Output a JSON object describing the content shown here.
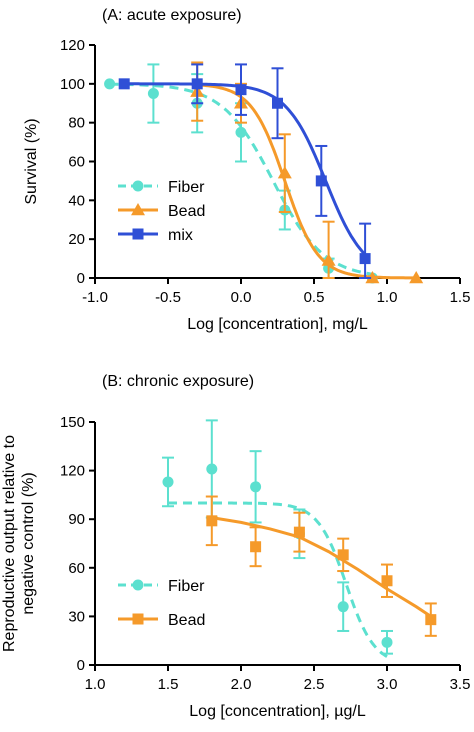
{
  "chart_data": [
    {
      "type": "scatter",
      "title": "(A: acute exposure)",
      "xlabel": "Log [concentration], mg/L",
      "ylabel": "Survival  (%)",
      "xlim": [
        -1.0,
        1.5
      ],
      "ylim": [
        0,
        120
      ],
      "xticks": [
        "-1.0",
        "-0.5",
        "0.0",
        "0.5",
        "1.0",
        "1.5"
      ],
      "yticks": [
        "0",
        "20",
        "40",
        "60",
        "80",
        "100",
        "120"
      ],
      "grid": false,
      "legend_position": "center-left",
      "series": [
        {
          "name": "Fiber",
          "color": "#5ce0cf",
          "marker": "circle",
          "line_style": "dashed",
          "fit": {
            "top": 100,
            "bottom": 0,
            "ec50_log": 0.22,
            "hill": 2.5
          },
          "points": [
            {
              "x": -0.9,
              "y": 100,
              "err": 0
            },
            {
              "x": -0.6,
              "y": 95,
              "err": 15
            },
            {
              "x": -0.3,
              "y": 90,
              "err": 15
            },
            {
              "x": 0.0,
              "y": 75,
              "err": 15
            },
            {
              "x": 0.3,
              "y": 35,
              "err": 10
            },
            {
              "x": 0.6,
              "y": 5,
              "err": 5
            },
            {
              "x": 0.9,
              "y": 0,
              "err": 0
            }
          ]
        },
        {
          "name": "Bead",
          "color": "#f59a2a",
          "marker": "triangle",
          "line_style": "solid",
          "fit": {
            "top": 100,
            "bottom": 0,
            "ec50_log": 0.3,
            "hill": 3.8
          },
          "points": [
            {
              "x": -0.3,
              "y": 96,
              "err": 15
            },
            {
              "x": 0.0,
              "y": 90,
              "err": 10
            },
            {
              "x": 0.3,
              "y": 54,
              "err": 20
            },
            {
              "x": 0.6,
              "y": 9,
              "err": 20
            },
            {
              "x": 0.9,
              "y": 0,
              "err": 0
            },
            {
              "x": 1.2,
              "y": 0,
              "err": 0
            }
          ]
        },
        {
          "name": "mix",
          "color": "#2f4fd6",
          "marker": "square",
          "line_style": "solid",
          "fit": {
            "top": 100,
            "bottom": 0,
            "ec50_log": 0.58,
            "hill": 3.2
          },
          "points": [
            {
              "x": -0.8,
              "y": 100,
              "err": 0
            },
            {
              "x": -0.3,
              "y": 100,
              "err": 10
            },
            {
              "x": 0.0,
              "y": 97,
              "err": 13
            },
            {
              "x": 0.25,
              "y": 90,
              "err": 18
            },
            {
              "x": 0.55,
              "y": 50,
              "err": 18
            },
            {
              "x": 0.85,
              "y": 10,
              "err": 18
            }
          ]
        }
      ]
    },
    {
      "type": "scatter",
      "title": "(B: chronic exposure)",
      "xlabel": "Log [concentration], µg/L",
      "ylabel": [
        "Reproductive output relative to",
        "negative control  (%)"
      ],
      "xlim": [
        1.0,
        3.5
      ],
      "ylim": [
        0,
        150
      ],
      "xticks": [
        "1.0",
        "1.5",
        "2.0",
        "2.5",
        "3.0",
        "3.5"
      ],
      "yticks": [
        "0",
        "30",
        "60",
        "90",
        "120",
        "150"
      ],
      "grid": false,
      "legend_position": "bottom-left",
      "series": [
        {
          "name": "Fiber",
          "color": "#5ce0cf",
          "marker": "circle",
          "line_style": "dashed",
          "fit": {
            "type": "sigmoid",
            "top": 100,
            "bottom": 0,
            "ec50_log": 2.72,
            "hill": 4.5
          },
          "points": [
            {
              "x": 1.5,
              "y": 113,
              "err": 15
            },
            {
              "x": 1.8,
              "y": 121,
              "err": 30
            },
            {
              "x": 2.1,
              "y": 110,
              "err": 22
            },
            {
              "x": 2.4,
              "y": 81,
              "err": 15
            },
            {
              "x": 2.7,
              "y": 36,
              "err": 15
            },
            {
              "x": 3.0,
              "y": 14,
              "err": 7
            }
          ]
        },
        {
          "name": "Bead",
          "color": "#f59a2a",
          "marker": "square",
          "line_style": "solid",
          "fit": {
            "type": "polyline",
            "x": [
              1.8,
              2.0,
              2.2,
              2.4,
              2.6,
              2.8,
              3.0,
              3.2,
              3.3
            ],
            "y": [
              91,
              88,
              84,
              79,
              70,
              59,
              47,
              36,
              30
            ]
          },
          "points": [
            {
              "x": 1.8,
              "y": 89,
              "err": 15
            },
            {
              "x": 2.1,
              "y": 73,
              "err": 12
            },
            {
              "x": 2.4,
              "y": 82,
              "err": 12
            },
            {
              "x": 2.7,
              "y": 68,
              "err": 10
            },
            {
              "x": 3.0,
              "y": 52,
              "err": 10
            },
            {
              "x": 3.3,
              "y": 28,
              "err": 10
            }
          ]
        }
      ]
    }
  ]
}
